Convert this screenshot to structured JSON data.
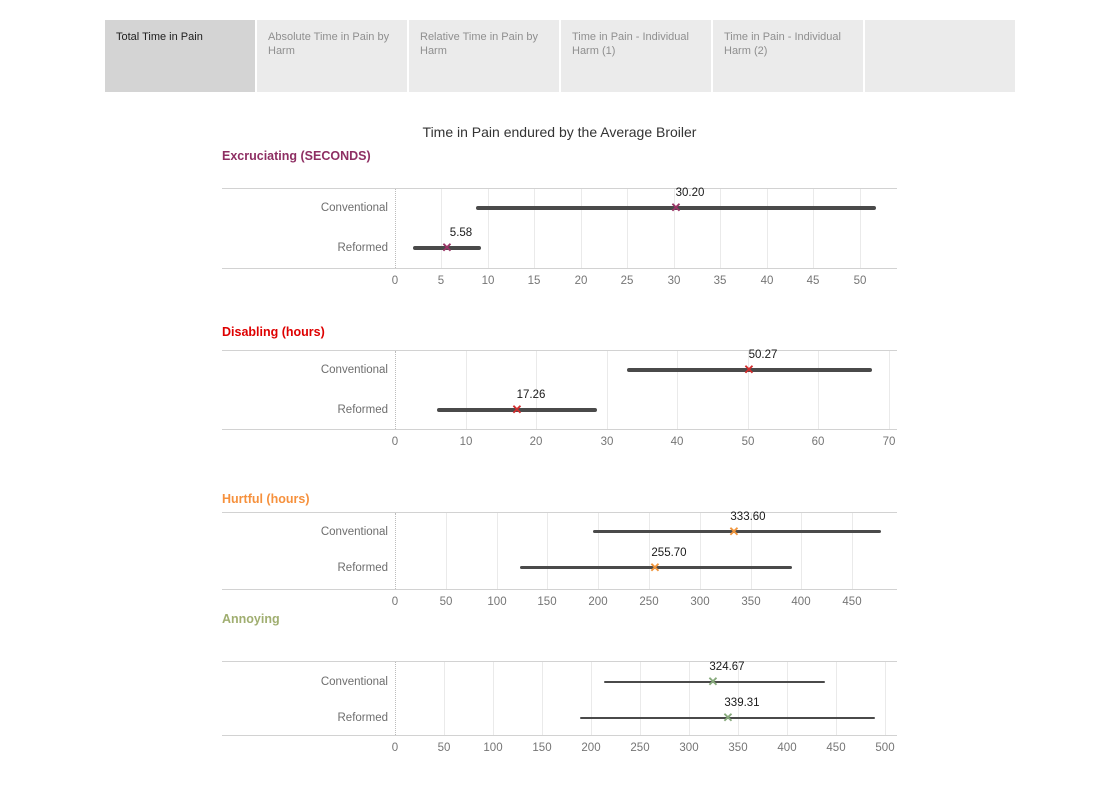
{
  "title": "Time in Pain endured by the Average Broiler",
  "tabs": [
    {
      "label": "Total Time in Pain",
      "active": true
    },
    {
      "label": "Absolute Time in Pain by Harm",
      "active": false
    },
    {
      "label": "Relative Time in Pain by Harm",
      "active": false
    },
    {
      "label": "Time in Pain - Individual Harm (1)",
      "active": false
    },
    {
      "label": "Time in Pain - Individual Harm (2)",
      "active": false
    }
  ],
  "colors": {
    "range_bar": "#4a4a4a",
    "active_tab_bg": "#d4d4d4",
    "inactive_tab_bg": "#ebebeb",
    "gridline": "#eaeaea"
  },
  "chart_data": [
    {
      "type": "scatter",
      "id": "excruciating",
      "title": "Excruciating (SECONDS)",
      "title_color": "#8E2F63",
      "marker_color": "#9A3466",
      "marker": "x",
      "categories": [
        "Conventional",
        "Reformed"
      ],
      "points": [
        {
          "label": "Conventional",
          "value": 30.2,
          "value_label": "30.20",
          "ci_low": 8.7,
          "ci_high": 51.7
        },
        {
          "label": "Reformed",
          "value": 5.58,
          "value_label": "5.58",
          "ci_low": 1.9,
          "ci_high": 9.2
        }
      ],
      "xticks": [
        0,
        5,
        10,
        15,
        20,
        25,
        30,
        35,
        40,
        45,
        50
      ],
      "xlim": [
        0,
        54
      ],
      "grid": true,
      "legend": false
    },
    {
      "type": "scatter",
      "id": "disabling",
      "title": "Disabling (hours)",
      "title_color": "#DE0000",
      "marker_color": "#D02C2C",
      "marker": "x",
      "categories": [
        "Conventional",
        "Reformed"
      ],
      "points": [
        {
          "label": "Conventional",
          "value": 50.27,
          "value_label": "50.27",
          "ci_low": 32.9,
          "ci_high": 67.7
        },
        {
          "label": "Reformed",
          "value": 17.26,
          "value_label": "17.26",
          "ci_low": 5.9,
          "ci_high": 28.6
        }
      ],
      "xticks": [
        0,
        10,
        20,
        30,
        40,
        50,
        60,
        70
      ],
      "xlim": [
        0,
        71.2
      ],
      "grid": true,
      "legend": false
    },
    {
      "type": "scatter",
      "id": "hurtful",
      "title": "Hurtful (hours)",
      "title_color": "#F6913D",
      "marker_color": "#F0953C",
      "marker": "x",
      "categories": [
        "Conventional",
        "Reformed"
      ],
      "points": [
        {
          "label": "Conventional",
          "value": 333.6,
          "value_label": "333.60",
          "ci_low": 195,
          "ci_high": 478
        },
        {
          "label": "Reformed",
          "value": 255.7,
          "value_label": "255.70",
          "ci_low": 123,
          "ci_high": 391
        }
      ],
      "xticks": [
        0,
        50,
        100,
        150,
        200,
        250,
        300,
        350,
        400,
        450
      ],
      "xlim": [
        0,
        494
      ],
      "grid": true,
      "legend": false
    },
    {
      "type": "scatter",
      "id": "annoying",
      "title": "Annoying",
      "title_color": "#A0AE70",
      "marker_color": "#87AA7C",
      "marker": "x",
      "categories": [
        "Conventional",
        "Reformed"
      ],
      "points": [
        {
          "label": "Conventional",
          "value": 324.67,
          "value_label": "324.67",
          "ci_low": 213,
          "ci_high": 438
        },
        {
          "label": "Reformed",
          "value": 339.31,
          "value_label": "339.31",
          "ci_low": 189,
          "ci_high": 490
        }
      ],
      "xticks": [
        0,
        50,
        100,
        150,
        200,
        250,
        300,
        350,
        400,
        450,
        500
      ],
      "xlim": [
        0,
        512
      ],
      "grid": true,
      "legend": false
    }
  ]
}
